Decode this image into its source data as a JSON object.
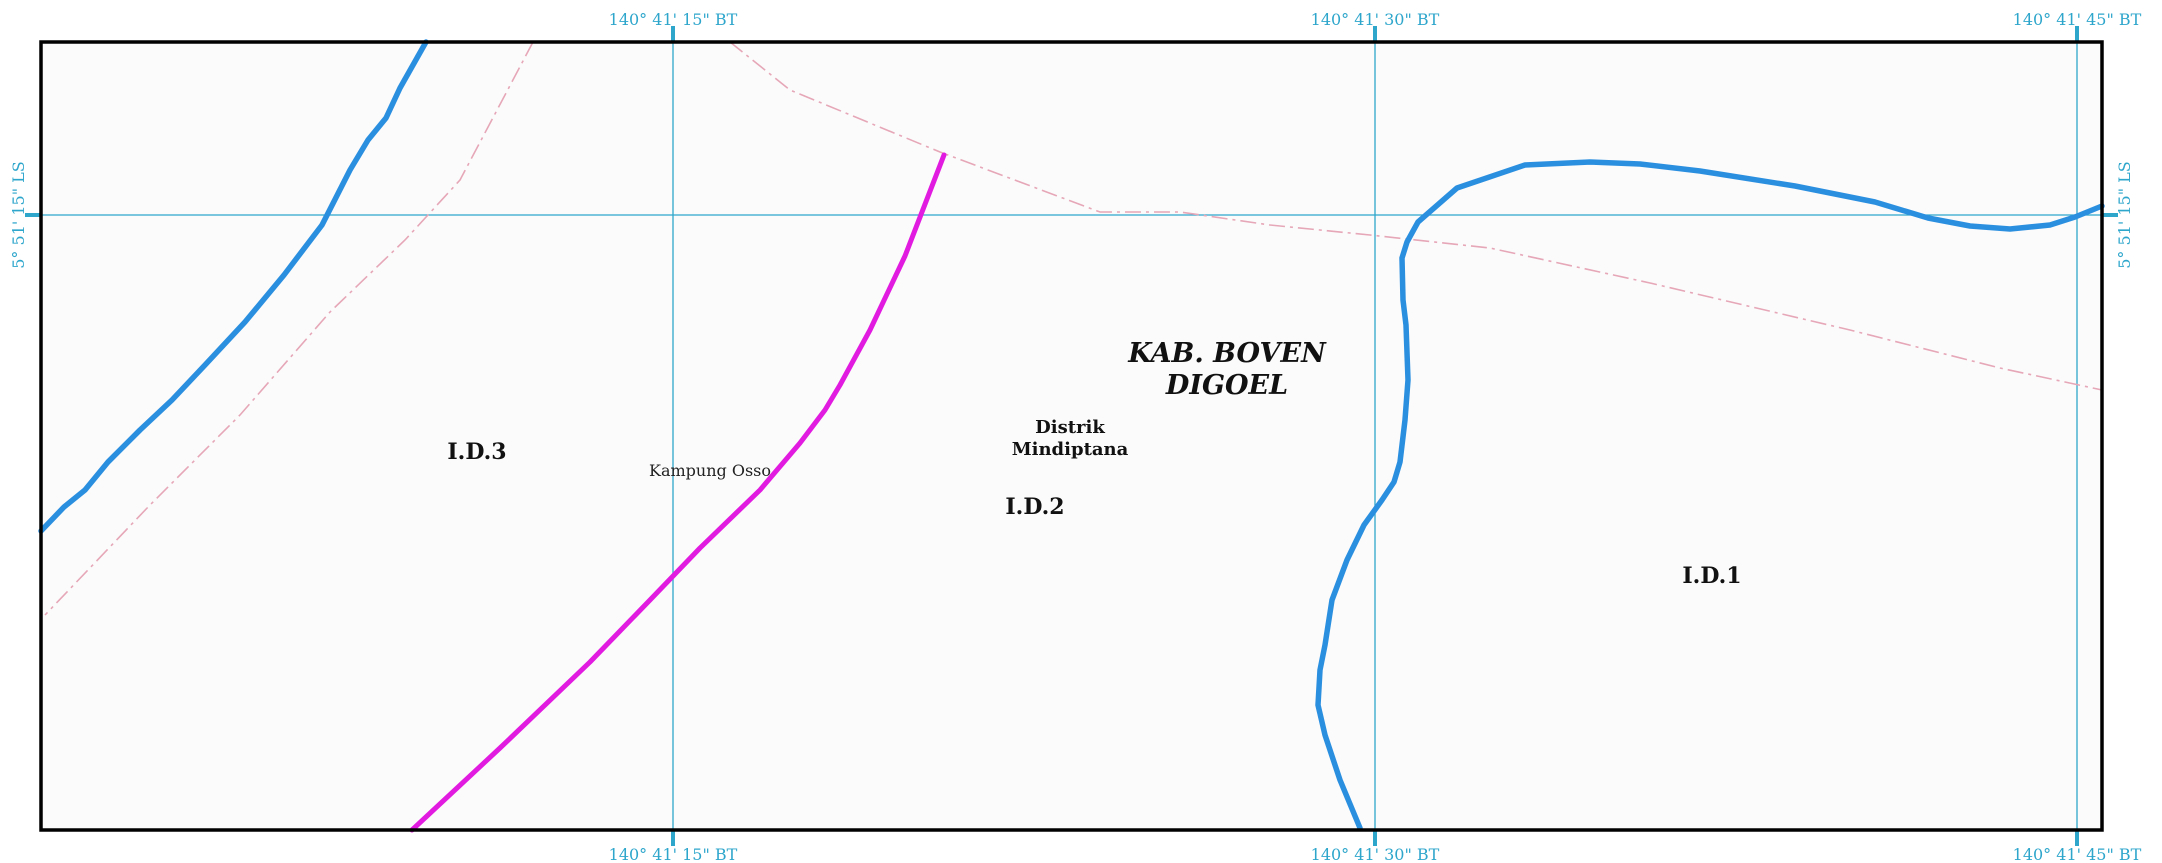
{
  "map": {
    "regency": {
      "line1": "KAB. BOVEN",
      "line2": "DIGOEL"
    },
    "district": {
      "line1": "Distrik",
      "line2": "Mindiptana"
    },
    "village": "Kampung Osso",
    "zones": {
      "id1": "I.D.1",
      "id2": "I.D.2",
      "id3": "I.D.3"
    },
    "graticule": {
      "longitudes": [
        "140° 41' 15\" BT",
        "140° 41' 30\" BT",
        "140° 41' 45\" BT"
      ],
      "latitudes": [
        "5° 51' 15\" LS"
      ]
    },
    "colors": {
      "river": "#2b8fe0",
      "boundary_magenta": "#e21be0",
      "admin_boundary": "#e6a7b8",
      "graticule": "#2ea6cc",
      "frame": "#000000",
      "background": "#fbfbfb"
    },
    "features": [
      "river",
      "zone-boundary",
      "administrative-boundary"
    ]
  }
}
